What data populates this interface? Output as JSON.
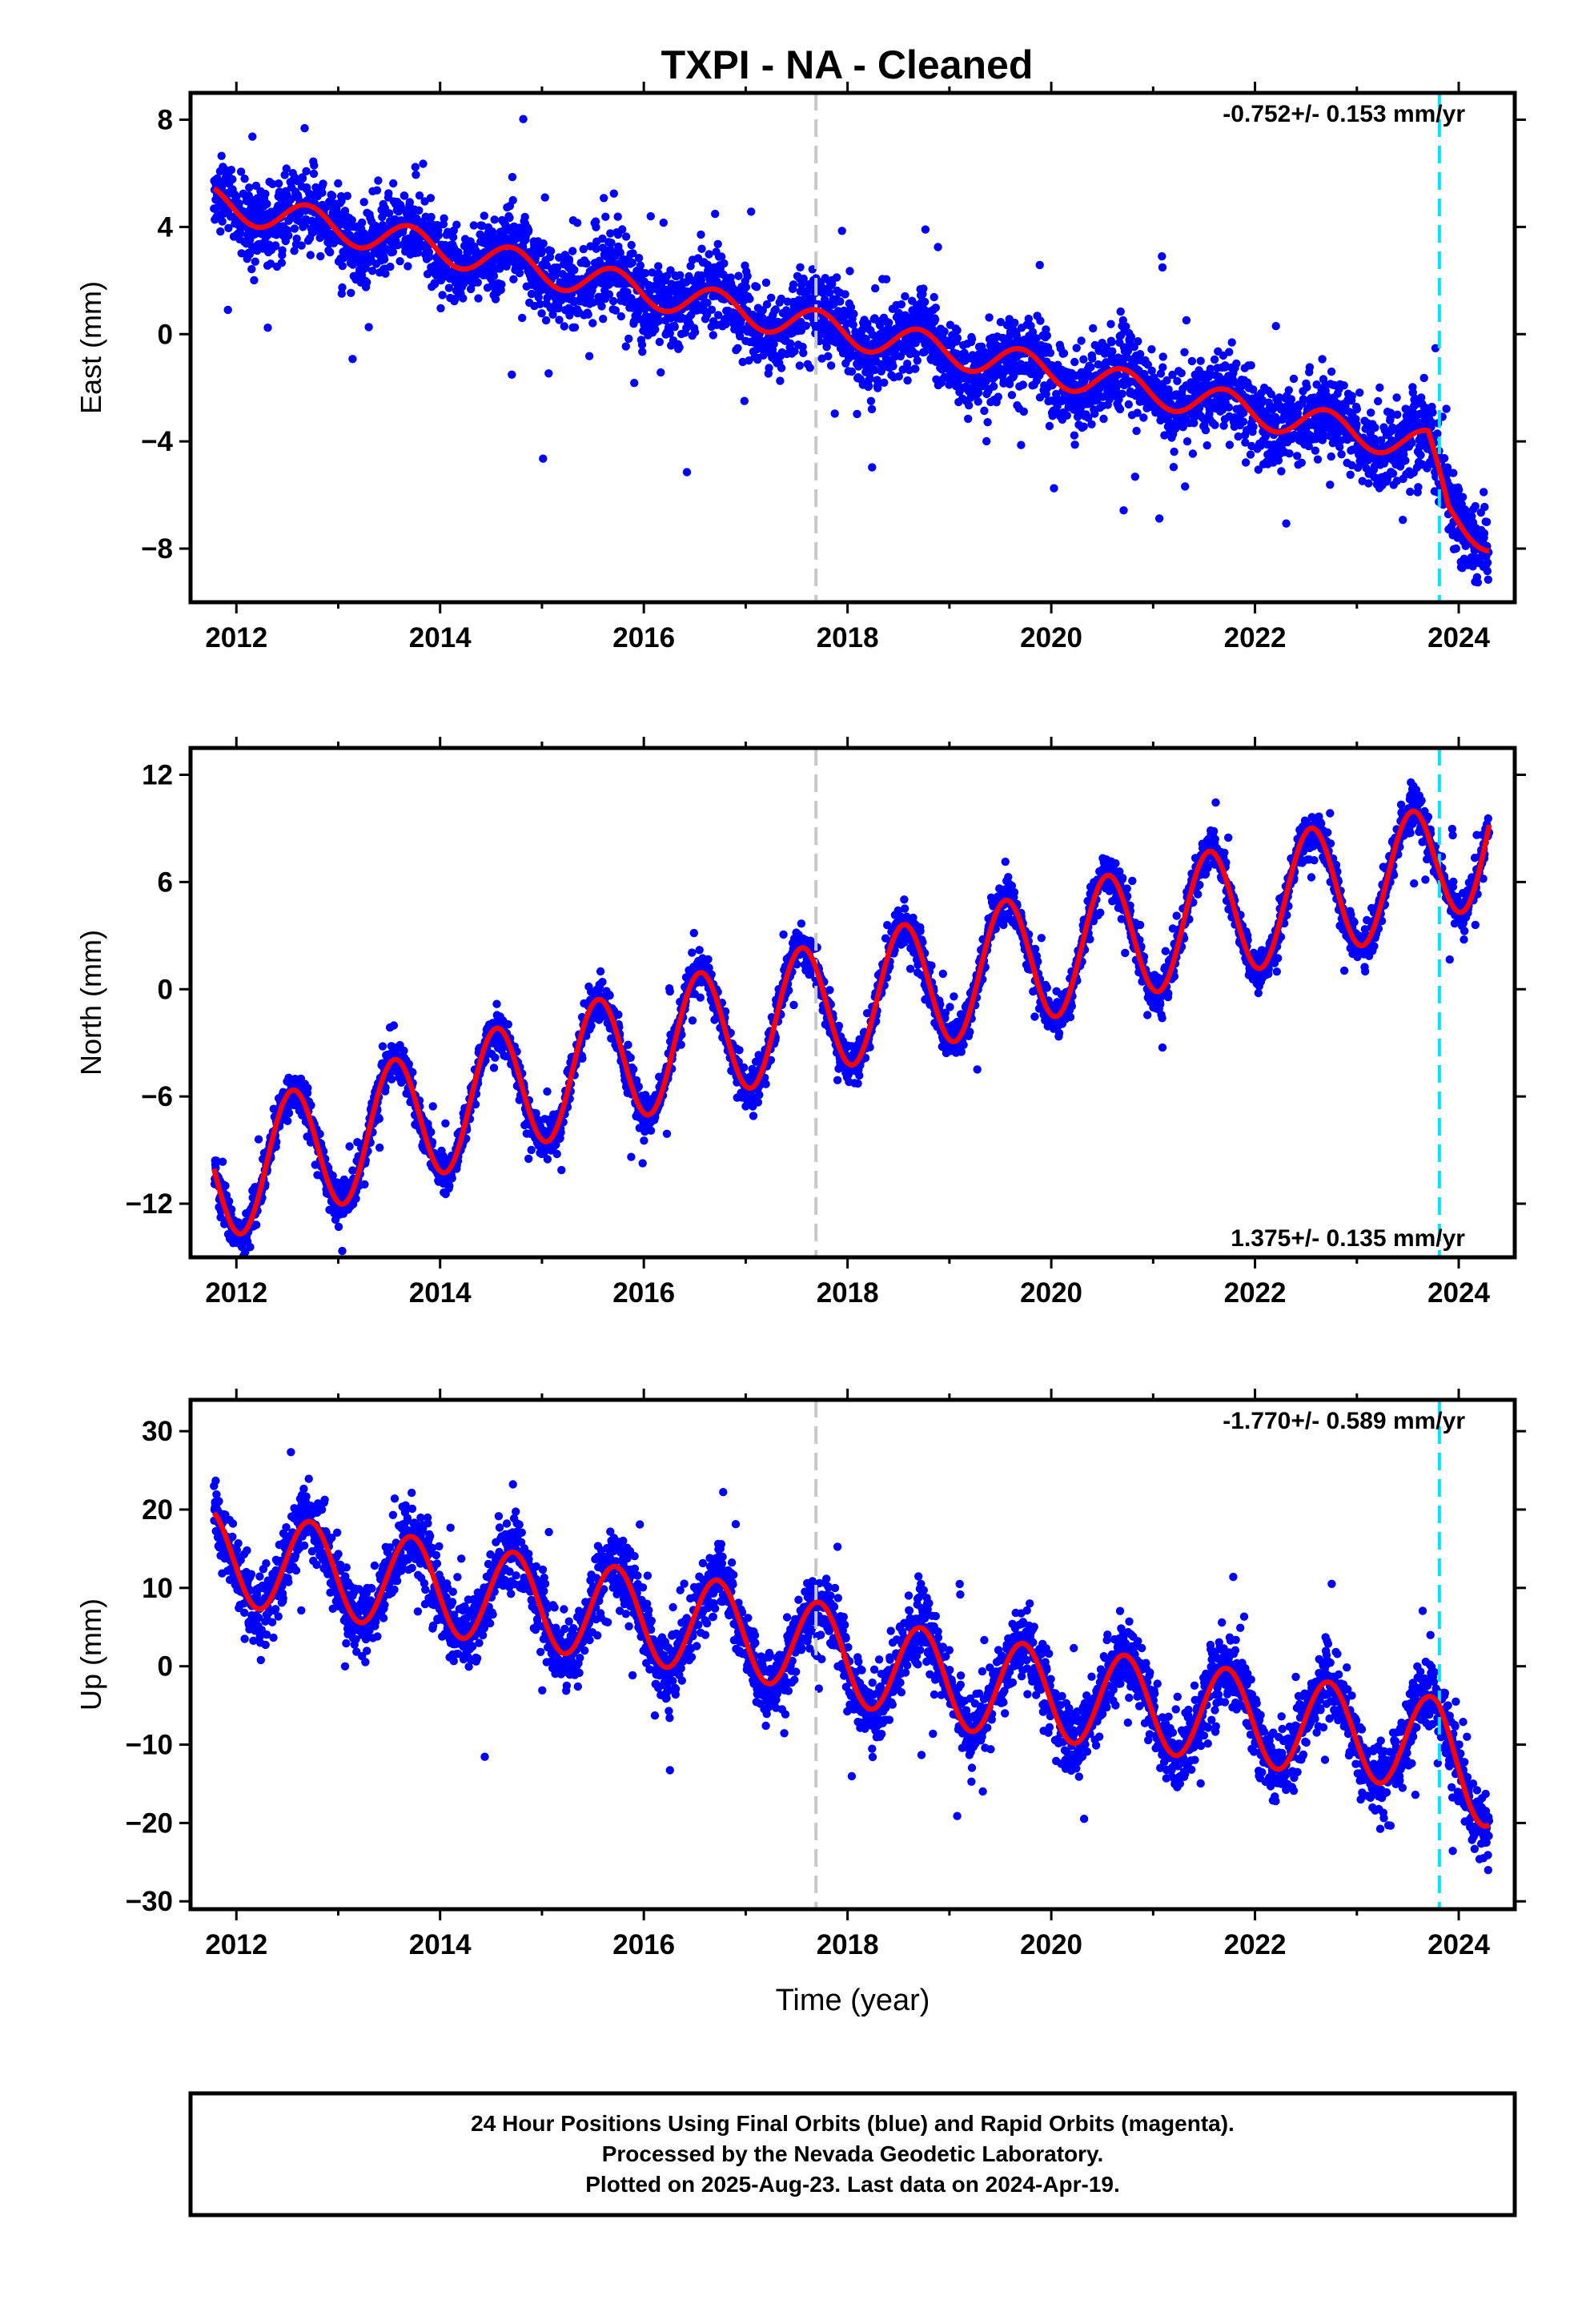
{
  "title": "TXPI  - NA - Cleaned",
  "xlabel": "Time (year)",
  "footer": {
    "line1": "24 Hour Positions Using Final Orbits (blue) and Rapid Orbits (magenta).",
    "line2": "Processed by the Nevada Geodetic Laboratory.",
    "line3": "Plotted on 2025-Aug-23. Last data on 2024-Apr-19."
  },
  "colors": {
    "data": "#0000ff",
    "model": "#ff0000",
    "gray_line": "#c8c8c8",
    "cyan_line": "#00e5ff"
  },
  "chart_data": [
    {
      "type": "scatter",
      "ylabel": "East (mm)",
      "rate_text": "-0.752+/- 0.153 mm/yr",
      "rate_position": "top-right",
      "xlim": [
        2011.55,
        2024.55
      ],
      "ylim": [
        -10,
        9
      ],
      "xticks": [
        2012,
        2014,
        2016,
        2018,
        2020,
        2022,
        2024
      ],
      "xtick_labels": [
        "2012",
        "2014",
        "2016",
        "2018",
        "2020",
        "2022",
        "2024"
      ],
      "yticks": [
        8,
        4,
        0,
        -4,
        -8
      ],
      "ytick_labels": [
        "8",
        "4",
        "0",
        "−4",
        "−8"
      ],
      "data_range": [
        2011.78,
        2024.3
      ],
      "vertical_lines": [
        {
          "x": 2017.69,
          "style": "gray"
        },
        {
          "x": 2023.81,
          "style": "cyan"
        }
      ],
      "trend_anchors": {
        "x": [
          2011.8,
          2013.5,
          2015.5,
          2017.7,
          2019.5,
          2021.5,
          2023.7,
          2023.9,
          2024.3
        ],
        "y": [
          4.9,
          3.6,
          2.0,
          0.3,
          -1.0,
          -2.5,
          -4.2,
          -6.6,
          -7.6
        ]
      },
      "seasonal_amplitude": 0.6,
      "seasonal_phase_peak": 0.7,
      "scatter_sigma": 1.3
    },
    {
      "type": "scatter",
      "ylabel": "North (mm)",
      "rate_text": "1.375+/- 0.135 mm/yr",
      "rate_position": "bottom-right",
      "xlim": [
        2011.55,
        2024.55
      ],
      "ylim": [
        -15,
        13.5
      ],
      "xticks": [
        2012,
        2014,
        2016,
        2018,
        2020,
        2022,
        2024
      ],
      "xtick_labels": [
        "2012",
        "2014",
        "2016",
        "2018",
        "2020",
        "2022",
        "2024"
      ],
      "yticks": [
        12,
        6,
        0,
        -6,
        -12
      ],
      "ytick_labels": [
        "12",
        "6",
        "0",
        "−6",
        "−12"
      ],
      "data_range": [
        2011.78,
        2024.3
      ],
      "vertical_lines": [
        {
          "x": 2017.69,
          "style": "gray"
        },
        {
          "x": 2023.81,
          "style": "cyan"
        }
      ],
      "trend_anchors": {
        "x": [
          2011.8,
          2013.0,
          2015.0,
          2017.0,
          2019.0,
          2021.0,
          2023.0,
          2023.75,
          2023.85,
          2024.3
        ],
        "y": [
          -10.5,
          -8.5,
          -5.0,
          -2.0,
          0.6,
          3.4,
          6.0,
          6.5,
          7.0,
          9.2
        ]
      },
      "seasonal_amplitude": 3.6,
      "seasonal_phase_peak": 0.55,
      "scatter_sigma": 1.0
    },
    {
      "type": "scatter",
      "ylabel": "Up (mm)",
      "rate_text": "-1.770+/- 0.589 mm/yr",
      "rate_position": "top-right",
      "xlim": [
        2011.55,
        2024.55
      ],
      "ylim": [
        -31,
        34
      ],
      "xticks": [
        2012,
        2014,
        2016,
        2018,
        2020,
        2022,
        2024
      ],
      "xtick_labels": [
        "2012",
        "2014",
        "2016",
        "2018",
        "2020",
        "2022",
        "2024"
      ],
      "yticks": [
        30,
        20,
        10,
        0,
        -10,
        -20,
        -30
      ],
      "ytick_labels": [
        "30",
        "20",
        "10",
        "0",
        "−10",
        "−20",
        "−30"
      ],
      "data_range": [
        2011.78,
        2024.3
      ],
      "vertical_lines": [
        {
          "x": 2017.69,
          "style": "gray"
        },
        {
          "x": 2023.81,
          "style": "cyan"
        }
      ],
      "trend_anchors": {
        "x": [
          2011.8,
          2013.0,
          2015.0,
          2017.0,
          2019.0,
          2021.0,
          2023.0,
          2023.8,
          2024.3
        ],
        "y": [
          14.0,
          12.0,
          8.0,
          4.5,
          -2.0,
          -5.0,
          -8.5,
          -10.0,
          -15.0
        ]
      },
      "seasonal_amplitude": 6.0,
      "seasonal_phase_peak": 0.72,
      "scatter_sigma": 4.0
    }
  ]
}
